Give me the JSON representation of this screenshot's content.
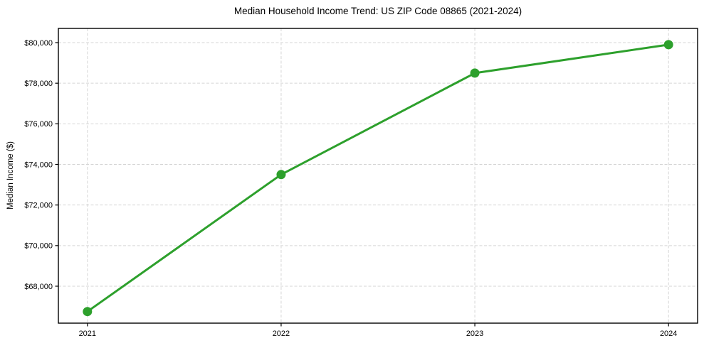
{
  "figure": {
    "background": "#ffffff",
    "text_color": "#000000",
    "spine_color": "#000000"
  },
  "chart_data": {
    "type": "line",
    "title": "Median Household Income Trend: US ZIP Code 08865 (2021-2024)",
    "xlabel": "",
    "ylabel": "Median Income ($)",
    "x": [
      2021,
      2022,
      2023,
      2024
    ],
    "values": [
      66750,
      73500,
      78500,
      79900
    ],
    "xticks": [
      2021,
      2022,
      2023,
      2024
    ],
    "xtick_labels": [
      "2021",
      "2022",
      "2023",
      "2024"
    ],
    "yticks": [
      68000,
      70000,
      72000,
      74000,
      76000,
      78000,
      80000
    ],
    "ytick_labels": [
      "$68,000",
      "$70,000",
      "$72,000",
      "$74,000",
      "$76,000",
      "$78,000",
      "$80,000"
    ],
    "xlim": [
      2020.85,
      2024.15
    ],
    "ylim": [
      66180,
      80700
    ],
    "grid": true,
    "grid_color": "#d5d5d5",
    "grid_dash": "4 2.5",
    "line_color": "#2da02c",
    "line_width": 3,
    "marker": "circle",
    "marker_radius": 6.5,
    "legend": false
  }
}
